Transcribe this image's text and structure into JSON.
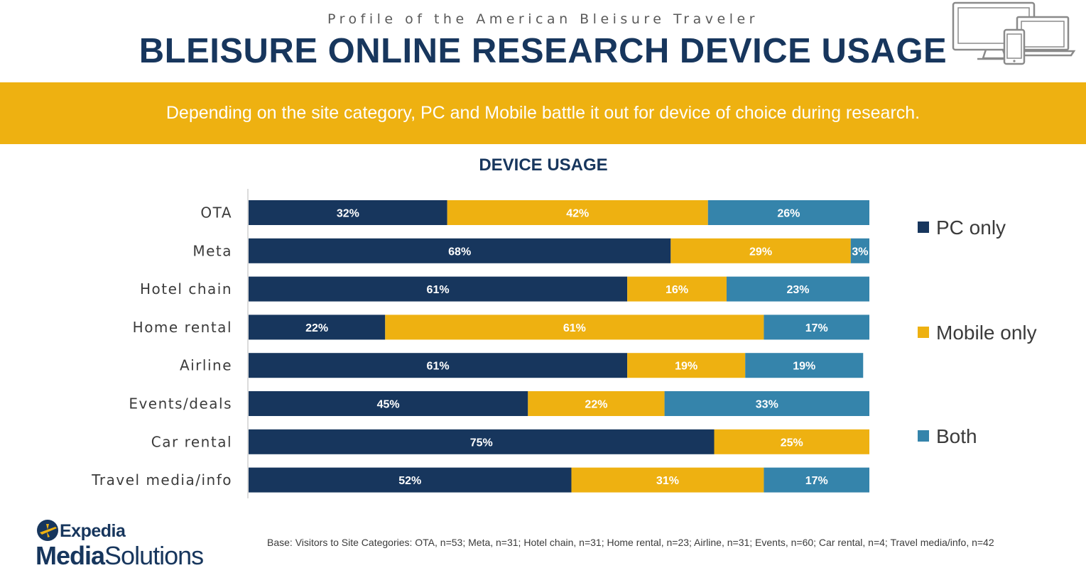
{
  "header": {
    "supertitle": "Profile of the American Bleisure Traveler",
    "title": "BLEISURE ONLINE RESEARCH DEVICE USAGE"
  },
  "banner": {
    "text": "Depending on the site category, PC and Mobile battle it out for device of choice during research."
  },
  "chart_data": {
    "type": "bar",
    "orientation": "horizontal",
    "stacked": true,
    "title": "DEVICE USAGE",
    "categories": [
      "OTA",
      "Meta",
      "Hotel chain",
      "Home rental",
      "Airline",
      "Events/deals",
      "Car rental",
      "Travel media/info"
    ],
    "series": [
      {
        "name": "PC only",
        "color": "#17365d",
        "values": [
          32,
          68,
          61,
          22,
          61,
          45,
          75,
          52
        ]
      },
      {
        "name": "Mobile only",
        "color": "#eeb111",
        "values": [
          42,
          29,
          16,
          61,
          19,
          22,
          25,
          31
        ]
      },
      {
        "name": "Both",
        "color": "#3584ab",
        "values": [
          26,
          3,
          23,
          17,
          19,
          33,
          0,
          17
        ]
      }
    ],
    "value_suffix": "%",
    "xlim": [
      0,
      100
    ],
    "grid": false,
    "legend_position": "right"
  },
  "footer": {
    "logo_top": "Expedia",
    "logo_bottom_bold": "Media",
    "logo_bottom_rest": "Solutions",
    "base_note": "Base: Visitors to Site Categories: OTA, n=53; Meta, n=31; Hotel chain, n=31; Home rental, n=23; Airline, n=31; Events, n=60; Car rental, n=4; Travel media/info, n=42"
  },
  "icons": {
    "device": "devices-icon",
    "logo": "expedia-globe-icon"
  }
}
